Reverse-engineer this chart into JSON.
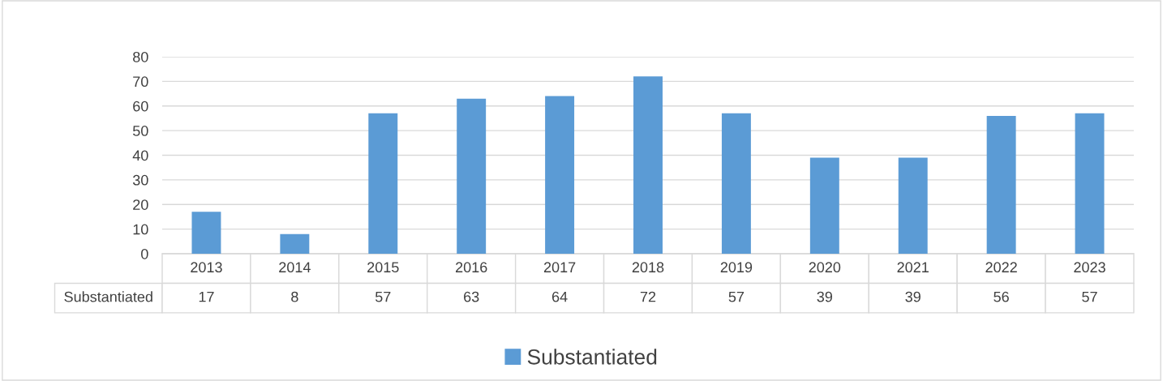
{
  "chart_data": {
    "type": "bar",
    "categories": [
      "2013",
      "2014",
      "2015",
      "2016",
      "2017",
      "2018",
      "2019",
      "2020",
      "2021",
      "2022",
      "2023"
    ],
    "series": [
      {
        "name": "Substantiated",
        "color": "#5b9bd5",
        "values": [
          17,
          8,
          57,
          63,
          64,
          72,
          57,
          39,
          39,
          56,
          57
        ]
      }
    ],
    "ylim": [
      0,
      80
    ],
    "yticks": [
      0,
      10,
      20,
      30,
      40,
      50,
      60,
      70,
      80
    ],
    "grid": "y",
    "legend": "bottom",
    "data_labels": true
  }
}
